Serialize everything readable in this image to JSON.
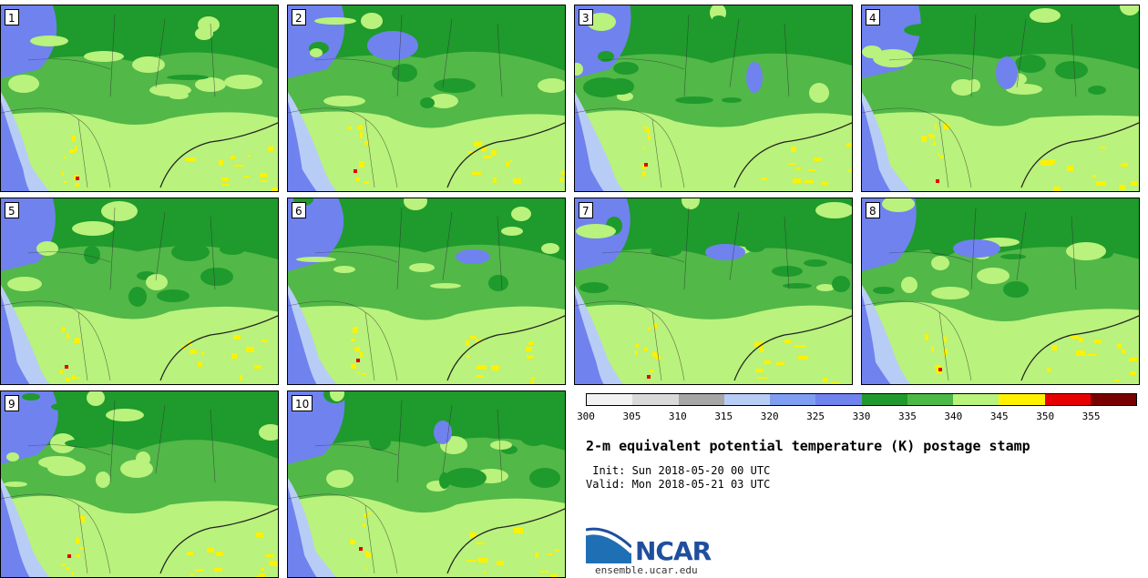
{
  "title": "2-m equivalent potential temperature (K) postage stamp",
  "init": " Init: Sun 2018-05-20 00 UTC",
  "valid": "Valid: Mon 2018-05-21 03 UTC",
  "panels": [
    "1",
    "2",
    "3",
    "4",
    "5",
    "6",
    "7",
    "8",
    "9",
    "10"
  ],
  "colorbar": {
    "ticks": [
      "300",
      "305",
      "310",
      "315",
      "320",
      "325",
      "330",
      "335",
      "340",
      "345",
      "350",
      "355"
    ],
    "colors": [
      "#f2f2f2",
      "#d9d9d9",
      "#a6a6a6",
      "#b8cdf5",
      "#7f9ef2",
      "#7082ee",
      "#1f9a2c",
      "#4cb845",
      "#b9f27c",
      "#fff200",
      "#e60000",
      "#7a0000"
    ]
  },
  "logo": {
    "text": "NCAR",
    "url": "ensemble.ucar.edu"
  },
  "colors": {
    "ocean": "#7082ee",
    "coast": "#b8cdf5",
    "dark_green": "#1f9a2c",
    "mid_green": "#52b848",
    "light_green": "#b9f27c",
    "yellow": "#fff200",
    "red": "#e60000"
  }
}
